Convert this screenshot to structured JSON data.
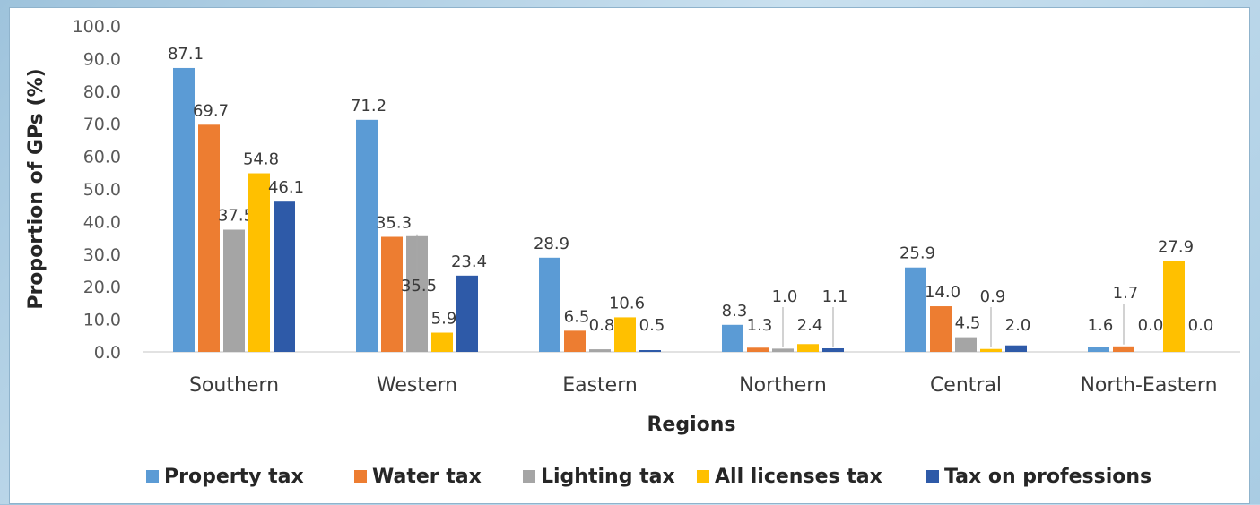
{
  "chart_data": {
    "type": "bar",
    "xlabel": "Regions",
    "ylabel": "Proportion of GPs (%)",
    "ylim": [
      0,
      100
    ],
    "yticks": [
      "0.0",
      "10.0",
      "20.0",
      "30.0",
      "40.0",
      "50.0",
      "60.0",
      "70.0",
      "80.0",
      "90.0",
      "100.0"
    ],
    "categories": [
      "Southern",
      "Western",
      "Eastern",
      "Northern",
      "Central",
      "North-Eastern"
    ],
    "series": [
      {
        "name": "Property tax",
        "color": "#5b9bd5",
        "values": [
          87.1,
          71.2,
          28.9,
          8.3,
          25.9,
          1.6
        ],
        "labels": [
          "87.1",
          "71.2",
          "28.9",
          "8.3",
          "25.9",
          "1.6"
        ]
      },
      {
        "name": "Water tax",
        "color": "#ed7d31",
        "values": [
          69.7,
          35.3,
          6.5,
          1.3,
          14.0,
          1.7
        ],
        "labels": [
          "69.7",
          "35.3",
          "6.5",
          "1.3",
          "14.0",
          "1.7"
        ]
      },
      {
        "name": "Lighting tax",
        "color": "#a5a5a5",
        "values": [
          37.5,
          35.5,
          0.8,
          1.0,
          4.5,
          0.0
        ],
        "labels": [
          "37.5",
          "35.5",
          "0.8",
          "1.0",
          "4.5",
          "0.0"
        ]
      },
      {
        "name": "All licenses tax",
        "color": "#ffc000",
        "values": [
          54.8,
          5.9,
          10.6,
          2.4,
          0.9,
          27.9
        ],
        "labels": [
          "54.8",
          "5.9",
          "10.6",
          "2.4",
          "0.9",
          "27.9"
        ]
      },
      {
        "name": "Tax on professions",
        "color": "#2e5aa8",
        "values": [
          46.1,
          23.4,
          0.5,
          1.1,
          2.0,
          0.0
        ],
        "labels": [
          "46.1",
          "23.4",
          "0.5",
          "1.1",
          "2.0",
          "0.0"
        ]
      }
    ],
    "legend_position": "bottom",
    "grid": false
  }
}
